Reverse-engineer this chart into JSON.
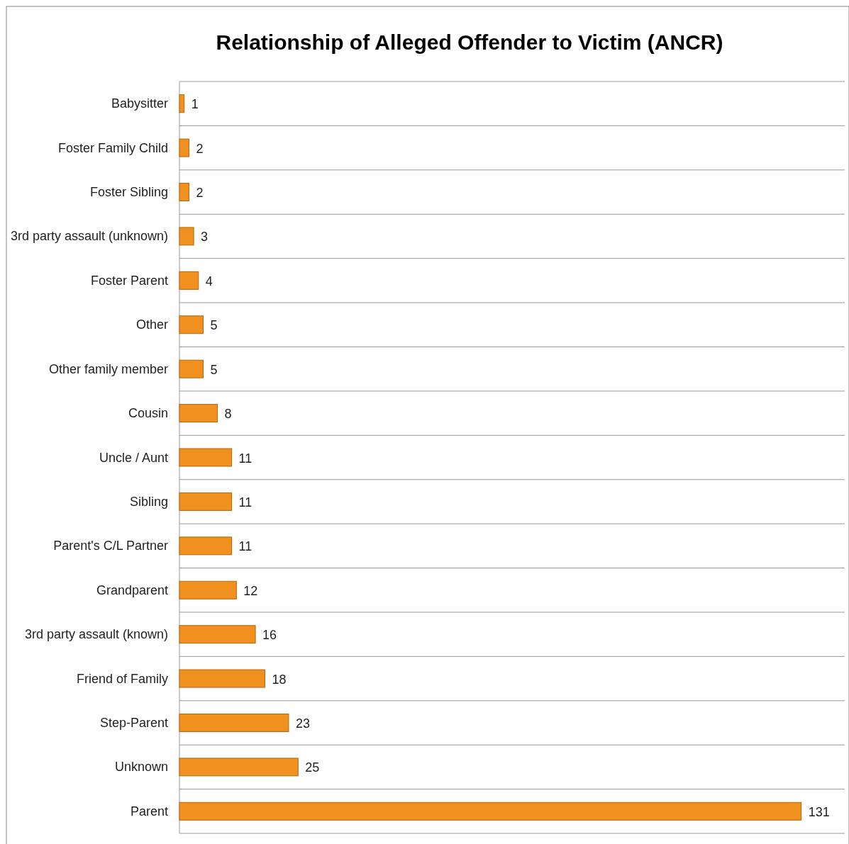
{
  "chart_data": {
    "type": "bar",
    "orientation": "horizontal",
    "title": "Relationship of Alleged Offender to Victim (ANCR)",
    "categories": [
      "Babysitter",
      "Foster Family Child",
      "Foster Sibling",
      "3rd party assault (unknown)",
      "Foster Parent",
      "Other",
      "Other family member",
      "Cousin",
      "Uncle / Aunt",
      "Sibling",
      "Parent's C/L Partner",
      "Grandparent",
      "3rd party assault (known)",
      "Friend of Family",
      "Step-Parent",
      "Unknown",
      "Parent"
    ],
    "values": [
      1,
      2,
      2,
      3,
      4,
      5,
      5,
      8,
      11,
      11,
      11,
      12,
      16,
      18,
      23,
      25,
      131
    ],
    "color": "#f0901e",
    "data_labels": true,
    "grid": true
  }
}
